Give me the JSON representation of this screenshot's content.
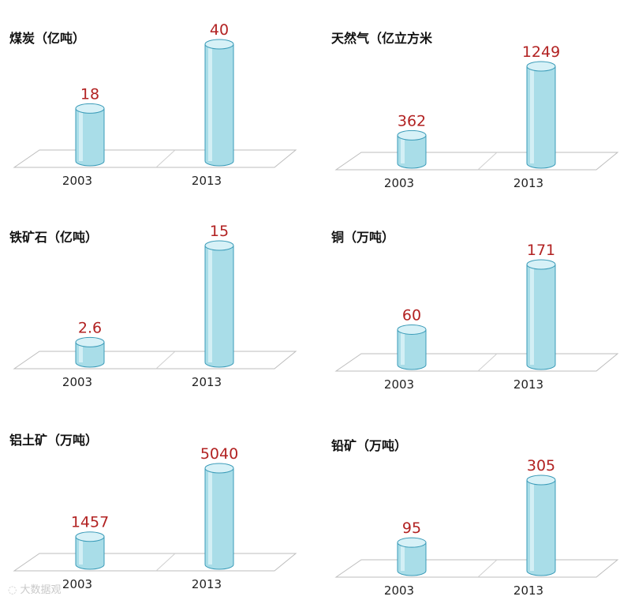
{
  "colors": {
    "bar": "#a9dde8",
    "bar_top": "#d7f1f7",
    "bar_edge": "#3a9bb8",
    "value_text": "#b22222"
  },
  "chart_data": [
    {
      "type": "bar",
      "title": "煤炭（亿吨）",
      "categories": [
        "2003",
        "2013"
      ],
      "values": [
        18,
        40
      ]
    },
    {
      "type": "bar",
      "title": "天然气（亿立方米",
      "categories": [
        "2003",
        "2013"
      ],
      "values": [
        362,
        1249
      ]
    },
    {
      "type": "bar",
      "title": "铁矿石（亿吨）",
      "categories": [
        "2003",
        "2013"
      ],
      "values": [
        2.6,
        15
      ]
    },
    {
      "type": "bar",
      "title": "铜（万吨）",
      "categories": [
        "2003",
        "2013"
      ],
      "values": [
        60,
        171
      ]
    },
    {
      "type": "bar",
      "title": "铝土矿（万吨）",
      "categories": [
        "2003",
        "2013"
      ],
      "values": [
        1457,
        5040
      ]
    },
    {
      "type": "bar",
      "title": "铅矿（万吨）",
      "categories": [
        "2003",
        "2013"
      ],
      "values": [
        95,
        305
      ]
    }
  ],
  "watermark": "大数据观"
}
